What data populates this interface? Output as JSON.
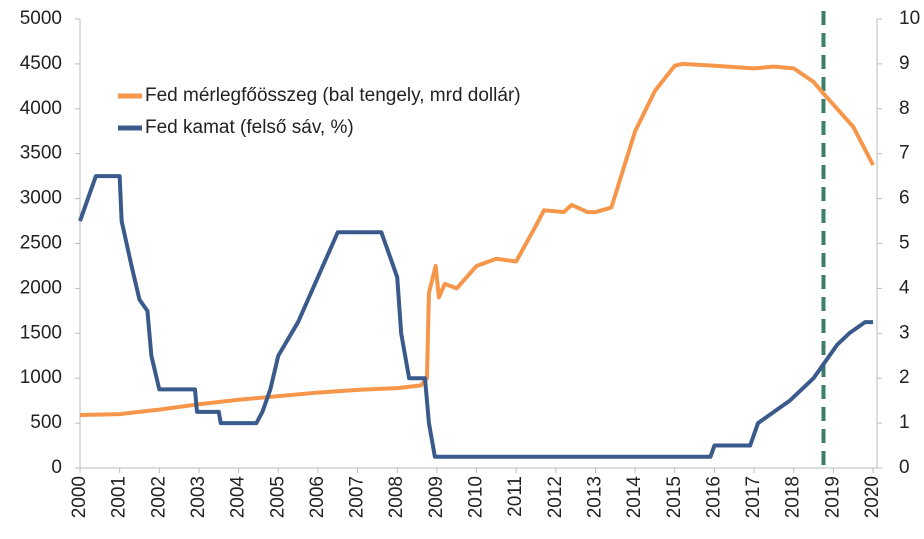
{
  "chart_data": {
    "type": "line",
    "xlim": [
      2000,
      2020.1
    ],
    "xticks": [
      2000,
      2001,
      2002,
      2003,
      2004,
      2005,
      2006,
      2007,
      2008,
      2009,
      2010,
      2011,
      2012,
      2013,
      2014,
      2015,
      2016,
      2017,
      2018,
      2019,
      2020
    ],
    "ylim": [
      0,
      5000
    ],
    "yticks": [
      0,
      500,
      1000,
      1500,
      2000,
      2500,
      3000,
      3500,
      4000,
      4500,
      5000
    ],
    "y2lim": [
      0,
      10
    ],
    "y2ticks": [
      0,
      1,
      2,
      3,
      4,
      5,
      6,
      7,
      8,
      9,
      10
    ],
    "legend": "upper left",
    "vline": {
      "x": 2018.75,
      "color": "#3d7d6a"
    },
    "series": [
      {
        "name": "Fed mérlegfőösszeg (bal tengely, mrd dollár)",
        "color": "#f5964a",
        "x": [
          2000,
          2001,
          2002,
          2003,
          2004,
          2005,
          2006,
          2007,
          2008,
          2008.6,
          2008.75,
          2008.8,
          2008.97,
          2009.05,
          2009.2,
          2009.5,
          2010,
          2010.5,
          2011,
          2011.5,
          2011.7,
          2012.2,
          2012.4,
          2012.8,
          2013,
          2013.4,
          2014,
          2014.5,
          2015,
          2015.2,
          2016,
          2017,
          2017.5,
          2018,
          2018.5,
          2018.75,
          2019.5,
          2020
        ],
        "values": [
          590,
          600,
          650,
          710,
          760,
          800,
          840,
          870,
          890,
          920,
          1000,
          1950,
          2250,
          1900,
          2050,
          2000,
          2250,
          2330,
          2300,
          2700,
          2870,
          2850,
          2930,
          2850,
          2850,
          2900,
          3750,
          4200,
          4480,
          4500,
          4480,
          4450,
          4470,
          4450,
          4300,
          4170,
          3800,
          3374
        ]
      },
      {
        "name": "Fed kamat (felső sáv, %)",
        "color": "#3a5a8c",
        "axis": "y2",
        "x": [
          2000,
          2000.2,
          2000.4,
          2001,
          2001.05,
          2001.3,
          2001.5,
          2001.7,
          2001.8,
          2002,
          2002.9,
          2002.95,
          2003.5,
          2003.55,
          2004.45,
          2004.6,
          2004.8,
          2005,
          2005.5,
          2006,
          2006.5,
          2007.6,
          2007.8,
          2008,
          2008.1,
          2008.3,
          2008.7,
          2008.8,
          2008.95,
          2015.9,
          2016,
          2016.9,
          2017.1,
          2017.5,
          2017.9,
          2018.2,
          2018.5,
          2018.7,
          2018.9,
          2019.1,
          2019.4,
          2019.8,
          2020
        ],
        "values": [
          5.5,
          6,
          6.5,
          6.5,
          5.5,
          4.5,
          3.75,
          3.5,
          2.5,
          1.75,
          1.75,
          1.25,
          1.25,
          1,
          1,
          1.25,
          1.75,
          2.5,
          3.25,
          4.25,
          5.25,
          5.25,
          4.75,
          4.25,
          3,
          2,
          2,
          1,
          0.25,
          0.25,
          0.5,
          0.5,
          1,
          1.25,
          1.5,
          1.75,
          2,
          2.25,
          2.5,
          2.75,
          3,
          3.25,
          3.25
        ]
      }
    ]
  }
}
